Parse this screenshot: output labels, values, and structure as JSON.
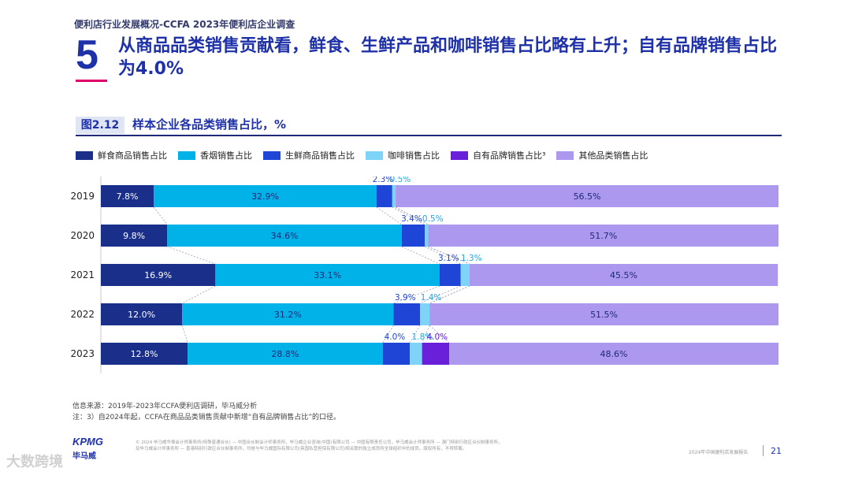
{
  "header": {
    "top_title": "便利店行业发展概况-CCFA 2023年便利店企业调查",
    "section_number": "5",
    "headline": "从商品品类销售贡献看，鲜食、生鲜产品和咖啡销售占比略有上升；自有品牌销售占比为4.0%"
  },
  "figure": {
    "tag": "图2.12",
    "title": "样本企业各品类销售占比，%"
  },
  "colors": {
    "fresh_food": "#1a2f8a",
    "tobacco": "#00b2e8",
    "produce": "#1f45d6",
    "coffee": "#7dd3f8",
    "private_label": "#6a1fd8",
    "other": "#ad98ef",
    "connector": "#9aa0b4"
  },
  "chart_data": {
    "type": "bar",
    "orientation": "horizontal",
    "stacked": true,
    "title": "样本企业各品类销售占比，%",
    "categories": [
      "2019",
      "2020",
      "2021",
      "2022",
      "2023"
    ],
    "series": [
      {
        "key": "fresh_food",
        "name": "鲜食商品销售占比",
        "values": [
          7.8,
          9.8,
          16.9,
          12.0,
          12.8
        ],
        "labels": [
          "7.8%",
          "9.8%",
          "16.9%",
          "12.0%",
          "12.8%"
        ]
      },
      {
        "key": "tobacco",
        "name": "香烟销售占比",
        "values": [
          32.9,
          34.6,
          33.1,
          31.2,
          28.8
        ],
        "labels": [
          "32.9%",
          "34.6%",
          "33.1%",
          "31.2%",
          "28.8%"
        ]
      },
      {
        "key": "produce",
        "name": "生鲜商品销售占比",
        "values": [
          2.3,
          3.4,
          3.1,
          3.9,
          4.0
        ],
        "labels": [
          "2.3%",
          "3.4%",
          "3.1%",
          "3.9%",
          "4.0%"
        ]
      },
      {
        "key": "coffee",
        "name": "咖啡销售占比",
        "values": [
          0.5,
          0.5,
          1.3,
          1.4,
          1.8
        ],
        "labels": [
          "0.5%",
          "0.5%",
          "1.3%",
          "1.4%",
          "1.8%"
        ]
      },
      {
        "key": "private_label",
        "name": "自有品牌销售占比³",
        "values": [
          0,
          0,
          0,
          0,
          4.0
        ],
        "labels": [
          "",
          "",
          "",
          "",
          "4.0%"
        ]
      },
      {
        "key": "other",
        "name": "其他品类销售占比",
        "values": [
          56.5,
          51.7,
          45.5,
          51.5,
          48.6
        ],
        "labels": [
          "56.5%",
          "51.7%",
          "45.5%",
          "51.5%",
          "48.6%"
        ]
      }
    ],
    "xlim": [
      0,
      100
    ],
    "xlabel": "",
    "ylabel": "",
    "legend_position": "top",
    "grid": false
  },
  "notes": {
    "source": "信息来源：2019年-2023年CCFA便利店调研，毕马威分析",
    "footnote": "注：3）自2024年起，CCFA在商品品类销售贡献中新增“自有品牌销售占比”的口径。"
  },
  "footer": {
    "logo": "KPMG",
    "logo_cn": "毕马威",
    "legal_line1": "© 2024 毕马威华振会计师事务所(特殊普通合伙) — 中国合伙制会计师事务所，毕马威企业咨询(中国)有限公司 — 中国有限责任公司，毕马威会计师事务所 — 澳门特别行政区合伙制事务所，",
    "legal_line2": "及毕马威会计师事务所 — 香港特别行政区合伙制事务所，均是与毕马威国际有限公司(英国私营担保有限公司)相关联的独立成员所全球组织中的成员。版权所有，不得转载。",
    "doc_name": "2024年中国便利店发展报告",
    "page_number": "21",
    "watermark": "大数跨境"
  }
}
